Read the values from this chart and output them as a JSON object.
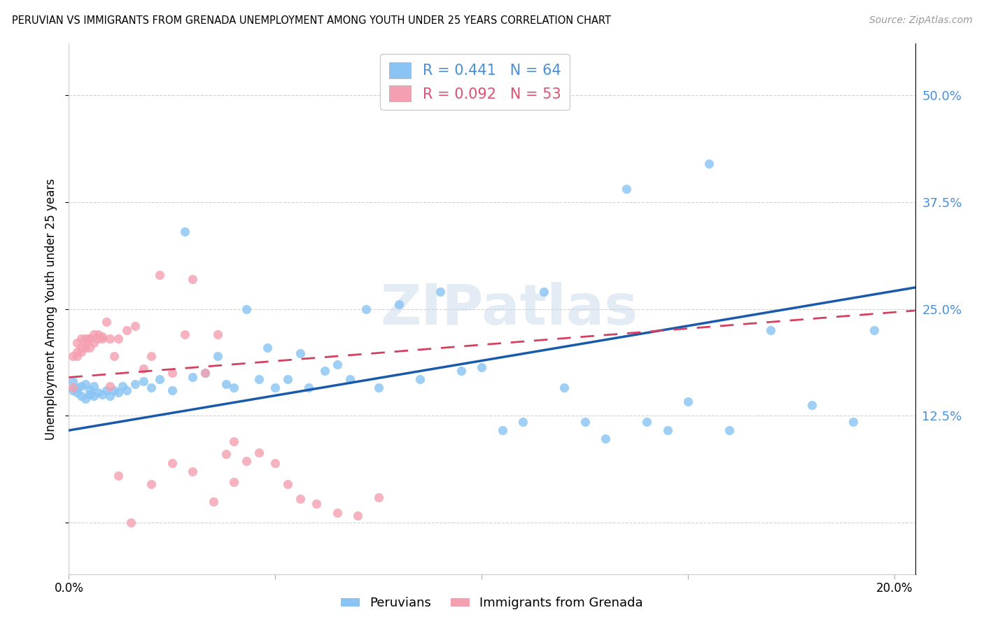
{
  "title": "PERUVIAN VS IMMIGRANTS FROM GRENADA UNEMPLOYMENT AMONG YOUTH UNDER 25 YEARS CORRELATION CHART",
  "source": "Source: ZipAtlas.com",
  "ylabel": "Unemployment Among Youth under 25 years",
  "xlim": [
    0.0,
    0.205
  ],
  "ylim": [
    -0.06,
    0.56
  ],
  "peruvian_color": "#89c4f4",
  "grenada_color": "#f4a0b0",
  "peruvian_line_color": "#1a5aaa",
  "grenada_line_color": "#d44060",
  "peruvian_R": 0.441,
  "peruvian_N": 64,
  "grenada_R": 0.092,
  "grenada_N": 53,
  "legend_label_peruvian": "Peruvians",
  "legend_label_grenada": "Immigrants from Grenada",
  "watermark": "ZIPatlas",
  "peruvian_x": [
    0.001,
    0.001,
    0.002,
    0.002,
    0.003,
    0.003,
    0.004,
    0.004,
    0.005,
    0.005,
    0.006,
    0.006,
    0.007,
    0.008,
    0.009,
    0.01,
    0.011,
    0.012,
    0.013,
    0.014,
    0.016,
    0.018,
    0.02,
    0.022,
    0.025,
    0.028,
    0.03,
    0.033,
    0.036,
    0.038,
    0.04,
    0.043,
    0.046,
    0.048,
    0.05,
    0.053,
    0.056,
    0.058,
    0.062,
    0.065,
    0.068,
    0.072,
    0.075,
    0.08,
    0.085,
    0.09,
    0.095,
    0.1,
    0.105,
    0.11,
    0.115,
    0.12,
    0.125,
    0.13,
    0.14,
    0.15,
    0.16,
    0.17,
    0.18,
    0.19,
    0.195,
    0.145,
    0.135,
    0.155
  ],
  "peruvian_y": [
    0.155,
    0.165,
    0.152,
    0.158,
    0.148,
    0.16,
    0.145,
    0.162,
    0.15,
    0.155,
    0.148,
    0.16,
    0.152,
    0.15,
    0.155,
    0.148,
    0.155,
    0.152,
    0.16,
    0.155,
    0.162,
    0.165,
    0.158,
    0.168,
    0.155,
    0.34,
    0.17,
    0.175,
    0.195,
    0.162,
    0.158,
    0.25,
    0.168,
    0.205,
    0.158,
    0.168,
    0.198,
    0.158,
    0.178,
    0.185,
    0.168,
    0.25,
    0.158,
    0.255,
    0.168,
    0.27,
    0.178,
    0.182,
    0.108,
    0.118,
    0.27,
    0.158,
    0.118,
    0.098,
    0.118,
    0.142,
    0.108,
    0.225,
    0.138,
    0.118,
    0.225,
    0.108,
    0.39,
    0.42
  ],
  "grenada_x": [
    0.001,
    0.001,
    0.002,
    0.002,
    0.002,
    0.003,
    0.003,
    0.003,
    0.004,
    0.004,
    0.004,
    0.005,
    0.005,
    0.005,
    0.006,
    0.006,
    0.007,
    0.007,
    0.008,
    0.008,
    0.009,
    0.01,
    0.011,
    0.012,
    0.014,
    0.016,
    0.018,
    0.02,
    0.022,
    0.025,
    0.028,
    0.03,
    0.033,
    0.036,
    0.038,
    0.04,
    0.043,
    0.046,
    0.05,
    0.053,
    0.056,
    0.06,
    0.065,
    0.07,
    0.075,
    0.01,
    0.012,
    0.015,
    0.02,
    0.025,
    0.03,
    0.035,
    0.04
  ],
  "grenada_y": [
    0.158,
    0.195,
    0.195,
    0.21,
    0.2,
    0.205,
    0.215,
    0.2,
    0.215,
    0.205,
    0.21,
    0.215,
    0.205,
    0.215,
    0.22,
    0.21,
    0.215,
    0.22,
    0.218,
    0.215,
    0.235,
    0.215,
    0.195,
    0.215,
    0.225,
    0.23,
    0.18,
    0.195,
    0.29,
    0.175,
    0.22,
    0.285,
    0.175,
    0.22,
    0.08,
    0.095,
    0.072,
    0.082,
    0.07,
    0.045,
    0.028,
    0.022,
    0.012,
    0.008,
    0.03,
    0.16,
    0.055,
    0.0,
    0.045,
    0.07,
    0.06,
    0.025,
    0.048
  ],
  "peru_line_x": [
    0.0,
    0.205
  ],
  "peru_line_y": [
    0.108,
    0.275
  ],
  "gren_line_x": [
    0.0,
    0.205
  ],
  "gren_line_y": [
    0.17,
    0.248
  ]
}
